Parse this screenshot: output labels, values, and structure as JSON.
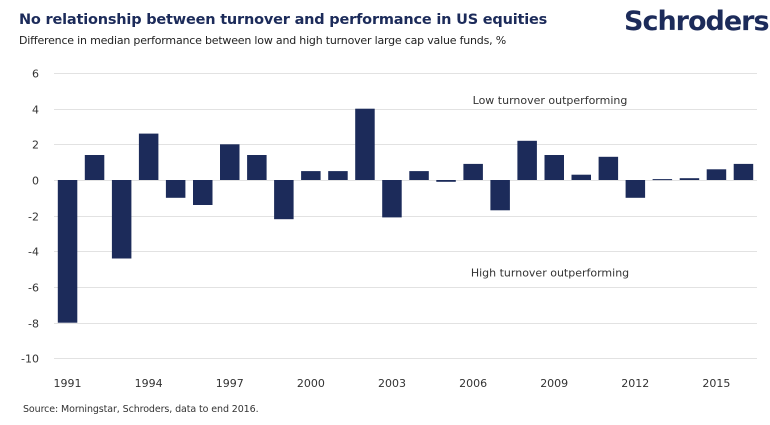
{
  "header": {
    "title": "No relationship between turnover and performance in US equities",
    "subtitle": "Difference in median performance between low and high turnover large cap value funds, %",
    "logo": "Schroders"
  },
  "footer": {
    "source": "Source: Morningstar, Schroders, data to end 2016."
  },
  "colors": {
    "bar": "#1c2b5a",
    "grid": "#e2e2e2",
    "title": "#1c2b5a"
  },
  "chart_data": {
    "type": "bar",
    "title": "No relationship between turnover and performance in US equities",
    "subtitle": "Difference in median performance between low and high turnover large cap value funds, %",
    "xlabel": "",
    "ylabel": "",
    "categories": [
      "1991",
      "1992",
      "1993",
      "1994",
      "1995",
      "1996",
      "1997",
      "1998",
      "1999",
      "2000",
      "2001",
      "2002",
      "2003",
      "2004",
      "2005",
      "2006",
      "2007",
      "2008",
      "2009",
      "2010",
      "2011",
      "2012",
      "2013",
      "2014",
      "2015",
      "2016"
    ],
    "values": [
      -8.0,
      1.4,
      -4.4,
      2.6,
      -1.0,
      -1.4,
      2.0,
      1.4,
      -2.2,
      0.5,
      0.5,
      4.0,
      -2.1,
      0.5,
      -0.1,
      0.9,
      -1.7,
      2.2,
      1.4,
      0.3,
      1.3,
      -1.0,
      0.05,
      0.1,
      0.6,
      0.9
    ],
    "x_tick_labels": [
      "1991",
      "1994",
      "1997",
      "2000",
      "2003",
      "2006",
      "2009",
      "2012",
      "2015"
    ],
    "y_ticks": [
      6,
      4,
      2,
      0,
      -2,
      -4,
      -6,
      -8,
      -10
    ],
    "ylim": [
      -10,
      6
    ],
    "grid": true,
    "legend": "none",
    "annotations": [
      {
        "text": "Low turnover outperforming",
        "y": 4.5
      },
      {
        "text": "High turnover outperforming",
        "y": -5.2
      }
    ],
    "source": "Source: Morningstar, Schroders, data to end 2016."
  }
}
